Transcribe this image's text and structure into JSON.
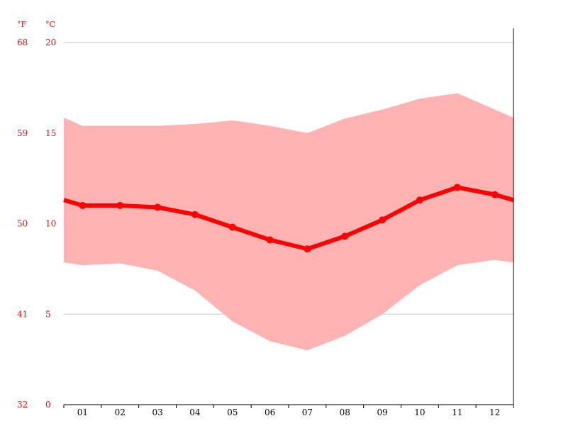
{
  "chart_data": {
    "type": "line",
    "title": "",
    "units": {
      "fahrenheit": "°F",
      "celsius": "°C"
    },
    "categories": [
      "01",
      "02",
      "03",
      "04",
      "05",
      "06",
      "07",
      "08",
      "09",
      "10",
      "11",
      "12"
    ],
    "y_celsius_ticks": [
      "0",
      "5",
      "10",
      "15",
      "20"
    ],
    "y_fahrenheit_ticks": [
      "32",
      "41",
      "50",
      "59",
      "68"
    ],
    "ylim": [
      0,
      20
    ],
    "grid": true,
    "series": [
      {
        "type": "line",
        "values": [
          11.0,
          11.0,
          10.9,
          10.5,
          9.8,
          9.1,
          8.6,
          9.3,
          10.2,
          11.3,
          12.0,
          11.6
        ]
      },
      {
        "type": "area-range",
        "low": [
          7.7,
          7.8,
          7.4,
          6.3,
          4.6,
          3.5,
          3.0,
          3.8,
          5.0,
          6.6,
          7.7,
          8.0
        ],
        "high": [
          15.4,
          15.4,
          15.4,
          15.5,
          15.7,
          15.4,
          15.0,
          15.8,
          16.3,
          16.9,
          17.2,
          16.3
        ]
      }
    ],
    "colors": {
      "line": "#ff0000",
      "band": "#ffb3b3",
      "grid": "#c8c8c8",
      "axis": "#000000"
    }
  }
}
